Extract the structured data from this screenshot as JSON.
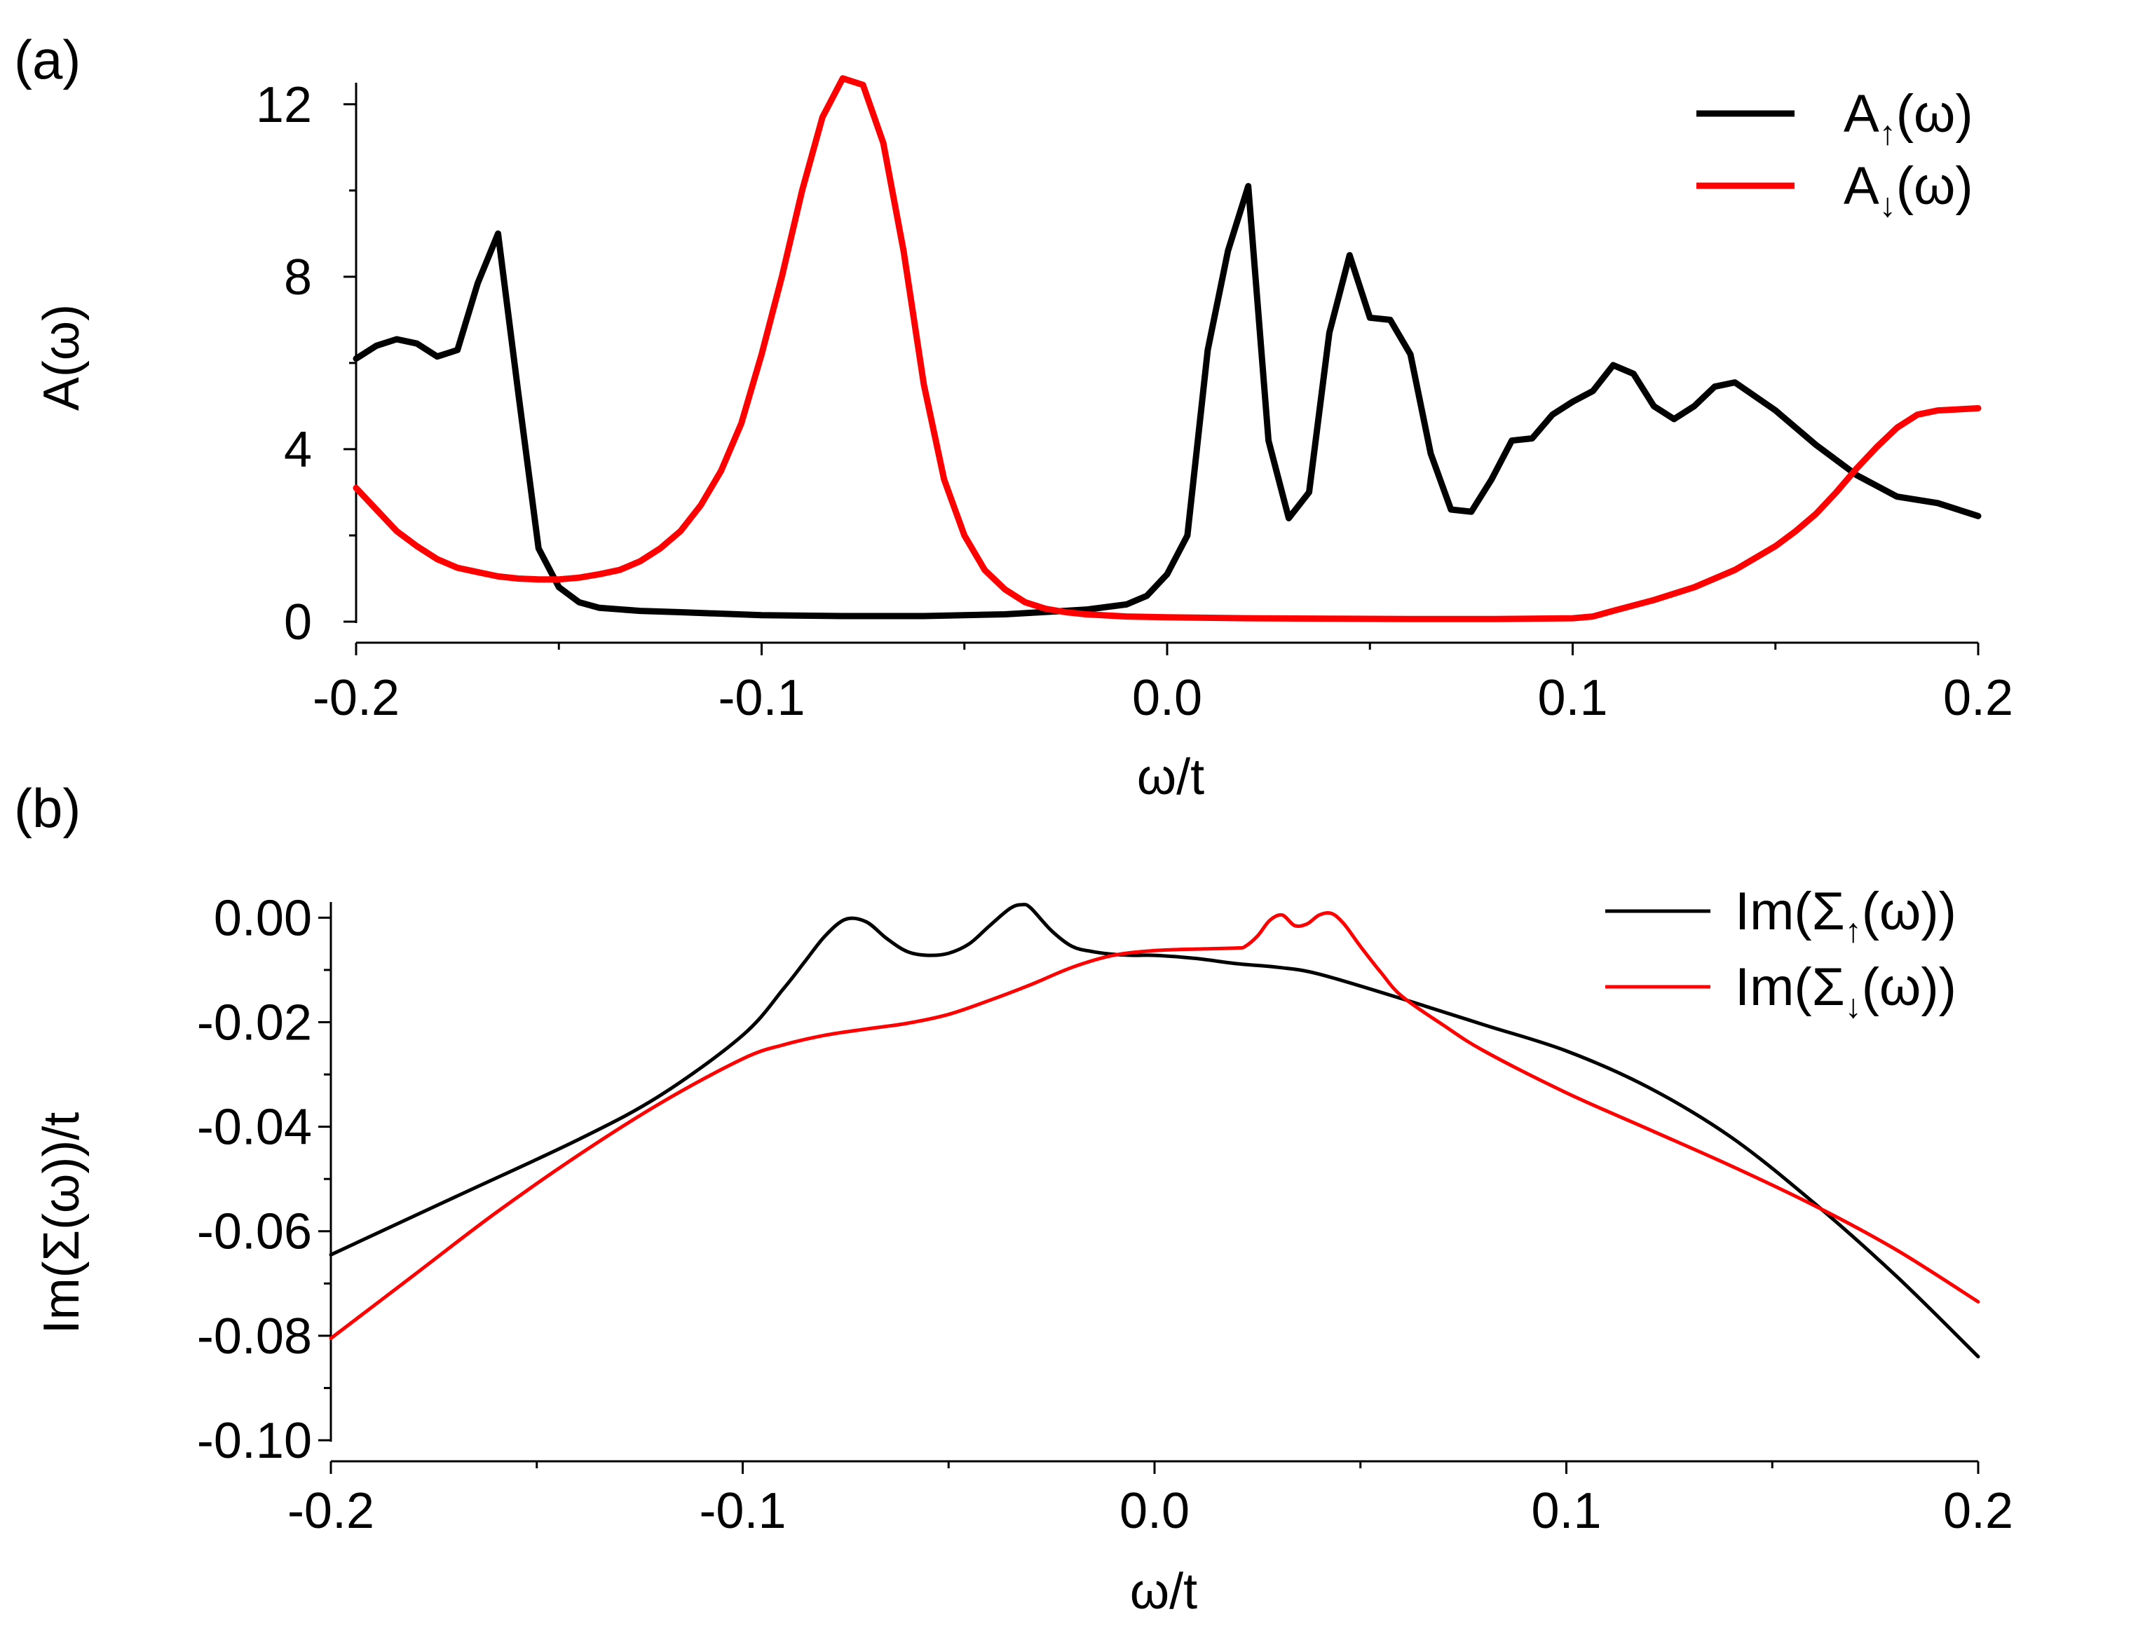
{
  "chart_data": [
    {
      "type": "line",
      "panel_label": "(a)",
      "xlabel": "ω/t",
      "ylabel": "A(ω)",
      "xlim": [
        -0.2,
        0.2
      ],
      "ylim": [
        0,
        12.5
      ],
      "xticks": [
        -0.2,
        -0.1,
        0.0,
        0.1,
        0.2
      ],
      "xtick_labels": [
        "-0.2",
        "-0.1",
        "0.0",
        "0.1",
        "0.2"
      ],
      "yticks": [
        0,
        4,
        8,
        12
      ],
      "ytick_labels": [
        "0",
        "4",
        "8",
        "12"
      ],
      "grid": false,
      "legend_position": "top-right",
      "series": [
        {
          "name": "A↑(ω)",
          "legend_main": "A",
          "legend_sub": "↑",
          "legend_tail": "(ω)",
          "color": "#000000",
          "x": [
            -0.2,
            -0.195,
            -0.19,
            -0.185,
            -0.18,
            -0.175,
            -0.17,
            -0.165,
            -0.16,
            -0.155,
            -0.15,
            -0.145,
            -0.14,
            -0.13,
            -0.12,
            -0.1,
            -0.08,
            -0.06,
            -0.04,
            -0.02,
            -0.01,
            -0.005,
            0.0,
            0.005,
            0.01,
            0.015,
            0.02,
            0.025,
            0.03,
            0.035,
            0.04,
            0.045,
            0.05,
            0.055,
            0.06,
            0.065,
            0.07,
            0.075,
            0.08,
            0.085,
            0.09,
            0.095,
            0.1,
            0.105,
            0.11,
            0.115,
            0.12,
            0.125,
            0.13,
            0.135,
            0.14,
            0.15,
            0.16,
            0.17,
            0.18,
            0.19,
            0.2
          ],
          "values": [
            6.1,
            6.4,
            6.55,
            6.45,
            6.15,
            6.3,
            7.85,
            9.0,
            5.3,
            1.7,
            0.8,
            0.45,
            0.32,
            0.25,
            0.22,
            0.15,
            0.13,
            0.13,
            0.17,
            0.28,
            0.4,
            0.6,
            1.1,
            2.0,
            6.3,
            8.6,
            10.1,
            4.2,
            2.4,
            3.0,
            6.7,
            8.5,
            7.05,
            7.0,
            6.2,
            3.9,
            2.6,
            2.55,
            3.3,
            4.2,
            4.25,
            4.8,
            5.1,
            5.35,
            5.95,
            5.75,
            5.0,
            4.7,
            5.0,
            5.45,
            5.55,
            4.9,
            4.1,
            3.4,
            2.9,
            2.75,
            2.45
          ]
        },
        {
          "name": "A↓(ω)",
          "legend_main": "A",
          "legend_sub": "↓",
          "legend_tail": "(ω)",
          "color": "#ff0000",
          "x": [
            -0.2,
            -0.195,
            -0.19,
            -0.185,
            -0.18,
            -0.175,
            -0.17,
            -0.165,
            -0.16,
            -0.155,
            -0.15,
            -0.145,
            -0.14,
            -0.135,
            -0.13,
            -0.125,
            -0.12,
            -0.115,
            -0.11,
            -0.105,
            -0.1,
            -0.095,
            -0.09,
            -0.085,
            -0.08,
            -0.075,
            -0.07,
            -0.065,
            -0.06,
            -0.055,
            -0.05,
            -0.045,
            -0.04,
            -0.035,
            -0.03,
            -0.025,
            -0.02,
            -0.01,
            0.0,
            0.02,
            0.04,
            0.06,
            0.08,
            0.1,
            0.105,
            0.11,
            0.12,
            0.13,
            0.14,
            0.15,
            0.155,
            0.16,
            0.165,
            0.17,
            0.175,
            0.18,
            0.185,
            0.19,
            0.2
          ],
          "values": [
            3.1,
            2.6,
            2.1,
            1.75,
            1.45,
            1.25,
            1.15,
            1.05,
            1.0,
            0.98,
            0.98,
            1.02,
            1.1,
            1.2,
            1.4,
            1.7,
            2.1,
            2.7,
            3.5,
            4.6,
            6.2,
            8.0,
            10.0,
            11.7,
            12.6,
            12.45,
            11.1,
            8.6,
            5.5,
            3.3,
            2.0,
            1.2,
            0.75,
            0.45,
            0.3,
            0.22,
            0.17,
            0.12,
            0.1,
            0.08,
            0.07,
            0.06,
            0.06,
            0.08,
            0.12,
            0.25,
            0.5,
            0.8,
            1.2,
            1.75,
            2.1,
            2.5,
            3.0,
            3.55,
            4.05,
            4.5,
            4.8,
            4.9,
            4.95
          ]
        }
      ]
    },
    {
      "type": "line",
      "panel_label": "(b)",
      "xlabel": "ω/t",
      "ylabel": "Im(Σ(ω))/t",
      "xlim": [
        -0.2,
        0.2
      ],
      "ylim": [
        -0.1,
        0.003
      ],
      "xticks": [
        -0.2,
        -0.1,
        0.0,
        0.1,
        0.2
      ],
      "xtick_labels": [
        "-0.2",
        "-0.1",
        "0.0",
        "0.1",
        "0.2"
      ],
      "yticks": [
        0.0,
        -0.02,
        -0.04,
        -0.06,
        -0.08,
        -0.1
      ],
      "ytick_labels": [
        "0.00",
        "-0.02",
        "-0.04",
        "-0.06",
        "-0.08",
        "-0.10"
      ],
      "grid": false,
      "legend_position": "top-right",
      "series": [
        {
          "name": "Im(Σ↑(ω))",
          "legend_main": "Im(Σ",
          "legend_sub": "↑",
          "legend_tail": "(ω))",
          "color": "#000000",
          "x": [
            -0.2,
            -0.17,
            -0.14,
            -0.12,
            -0.1,
            -0.09,
            -0.085,
            -0.08,
            -0.075,
            -0.07,
            -0.065,
            -0.06,
            -0.055,
            -0.05,
            -0.045,
            -0.04,
            -0.035,
            -0.032,
            -0.03,
            -0.025,
            -0.02,
            -0.015,
            -0.01,
            -0.005,
            0.0,
            0.01,
            0.02,
            0.03,
            0.04,
            0.06,
            0.08,
            0.1,
            0.12,
            0.14,
            0.16,
            0.18,
            0.2
          ],
          "values": [
            -0.0645,
            -0.0535,
            -0.0425,
            -0.034,
            -0.0225,
            -0.0135,
            -0.0085,
            -0.0035,
            -0.0003,
            -0.0008,
            -0.004,
            -0.0065,
            -0.0072,
            -0.0068,
            -0.005,
            -0.0015,
            0.0018,
            0.0025,
            0.0018,
            -0.0025,
            -0.0055,
            -0.0065,
            -0.007,
            -0.0072,
            -0.0072,
            -0.0078,
            -0.0088,
            -0.0095,
            -0.0108,
            -0.0155,
            -0.0205,
            -0.0255,
            -0.0325,
            -0.042,
            -0.0545,
            -0.0685,
            -0.084
          ]
        },
        {
          "name": "Im(Σ↓(ω))",
          "legend_main": "Im(Σ",
          "legend_sub": "↓",
          "legend_tail": "(ω))",
          "color": "#ff0000",
          "x": [
            -0.2,
            -0.18,
            -0.16,
            -0.14,
            -0.12,
            -0.1,
            -0.09,
            -0.08,
            -0.07,
            -0.06,
            -0.05,
            -0.04,
            -0.03,
            -0.02,
            -0.01,
            0.0,
            0.01,
            0.02,
            0.022,
            0.025,
            0.028,
            0.031,
            0.034,
            0.037,
            0.04,
            0.043,
            0.046,
            0.05,
            0.055,
            0.06,
            0.07,
            0.08,
            0.1,
            0.12,
            0.14,
            0.16,
            0.18,
            0.2
          ],
          "values": [
            -0.0805,
            -0.0685,
            -0.0565,
            -0.0455,
            -0.0355,
            -0.027,
            -0.0243,
            -0.0225,
            -0.0213,
            -0.0202,
            -0.0185,
            -0.0158,
            -0.0128,
            -0.0095,
            -0.0072,
            -0.0063,
            -0.006,
            -0.0058,
            -0.0055,
            -0.0035,
            -0.0005,
            0.0005,
            -0.0015,
            -0.0012,
            0.0005,
            0.0008,
            -0.0012,
            -0.0055,
            -0.0105,
            -0.015,
            -0.0205,
            -0.0255,
            -0.0335,
            -0.0405,
            -0.0475,
            -0.055,
            -0.0635,
            -0.0735
          ]
        }
      ]
    }
  ]
}
